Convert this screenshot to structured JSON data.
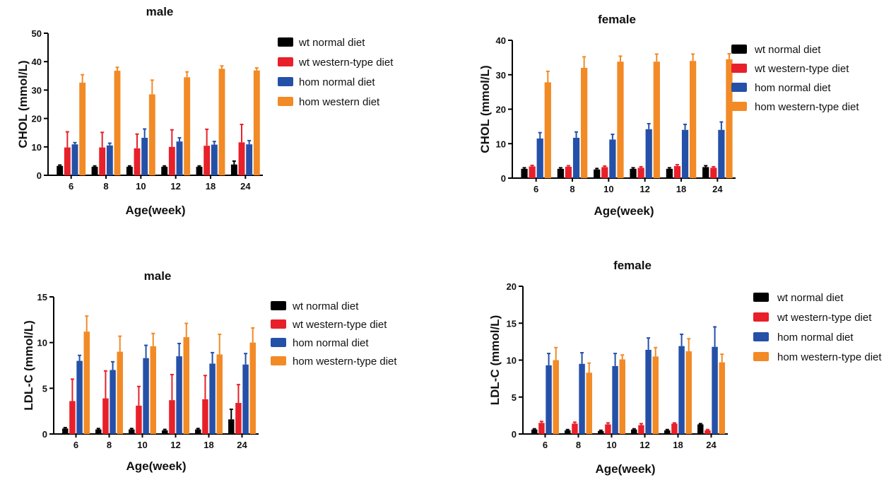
{
  "colors": {
    "wt_normal": "#000000",
    "wt_western": "#e8202a",
    "hom_normal": "#2450a8",
    "hom_western": "#f28a26"
  },
  "chart_data": [
    {
      "type": "bar",
      "title": "male",
      "xlabel": "Age(week)",
      "ylabel": "CHOL (mmol/L)",
      "ylim": [
        0,
        50
      ],
      "yticks": [
        0,
        10,
        20,
        30,
        40,
        50
      ],
      "categories": [
        "6",
        "8",
        "10",
        "12",
        "18",
        "24"
      ],
      "legend_position": "right",
      "series": [
        {
          "name": "wt normal diet",
          "color_key": "wt_normal",
          "values": [
            3.3,
            3.0,
            3.0,
            3.0,
            3.0,
            3.8
          ],
          "errors": [
            0.3,
            0.3,
            0.3,
            0.3,
            0.3,
            1.2
          ]
        },
        {
          "name": "wt western-type diet",
          "color_key": "wt_western",
          "values": [
            9.8,
            9.8,
            9.5,
            10.0,
            10.4,
            11.6
          ],
          "errors": [
            5.5,
            5.3,
            5.0,
            6.0,
            5.8,
            6.3
          ]
        },
        {
          "name": "hom normal diet",
          "color_key": "hom_normal",
          "values": [
            10.9,
            10.5,
            13.2,
            11.9,
            10.8,
            10.9
          ],
          "errors": [
            0.6,
            0.8,
            3.1,
            1.3,
            1.1,
            1.3
          ]
        },
        {
          "name": "hom western diet",
          "color_key": "hom_western",
          "values": [
            32.6,
            36.8,
            28.5,
            34.5,
            37.5,
            36.9
          ],
          "errors": [
            2.8,
            1.2,
            5.0,
            1.9,
            1.0,
            0.9
          ]
        }
      ]
    },
    {
      "type": "bar",
      "title": "female",
      "xlabel": "Age(week)",
      "ylabel": "CHOL (mmol/L)",
      "ylim": [
        0,
        40
      ],
      "yticks": [
        0,
        10,
        20,
        30,
        40
      ],
      "categories": [
        "6",
        "8",
        "10",
        "12",
        "18",
        "24"
      ],
      "legend_position": "right",
      "series": [
        {
          "name": "wt normal diet",
          "color_key": "wt_normal",
          "values": [
            2.7,
            2.7,
            2.5,
            2.7,
            2.7,
            3.2
          ],
          "errors": [
            0.3,
            0.3,
            0.3,
            0.3,
            0.3,
            0.4
          ]
        },
        {
          "name": "wt western-type diet",
          "color_key": "wt_western",
          "values": [
            3.4,
            3.3,
            3.2,
            3.0,
            3.5,
            3.0
          ],
          "errors": [
            0.3,
            0.3,
            0.3,
            0.3,
            0.4,
            0.3
          ]
        },
        {
          "name": "hom normal diet",
          "color_key": "hom_normal",
          "values": [
            11.5,
            11.7,
            11.2,
            14.2,
            14.0,
            14.0
          ],
          "errors": [
            1.7,
            1.7,
            1.5,
            1.6,
            1.6,
            2.3
          ]
        },
        {
          "name": "hom western-type diet",
          "color_key": "hom_western",
          "values": [
            27.8,
            32.0,
            33.8,
            33.8,
            34.0,
            34.5
          ],
          "errors": [
            3.2,
            3.2,
            1.6,
            2.2,
            2.0,
            1.6
          ]
        }
      ]
    },
    {
      "type": "bar",
      "title": "male",
      "xlabel": "Age(week)",
      "ylabel": "LDL-C (mmol/L)",
      "ylim": [
        0,
        15
      ],
      "yticks": [
        0,
        5,
        10,
        15
      ],
      "categories": [
        "6",
        "8",
        "10",
        "12",
        "18",
        "24"
      ],
      "legend_position": "right",
      "series": [
        {
          "name": "wt normal diet",
          "color_key": "wt_normal",
          "values": [
            0.6,
            0.5,
            0.5,
            0.4,
            0.5,
            1.6
          ],
          "errors": [
            0.1,
            0.1,
            0.1,
            0.1,
            0.1,
            1.1
          ]
        },
        {
          "name": "wt western-type diet",
          "color_key": "wt_western",
          "values": [
            3.6,
            3.9,
            3.1,
            3.7,
            3.8,
            3.4
          ],
          "errors": [
            2.4,
            3.0,
            2.1,
            2.8,
            2.6,
            2.0
          ]
        },
        {
          "name": "hom normal diet",
          "color_key": "hom_normal",
          "values": [
            8.0,
            7.0,
            8.3,
            8.5,
            7.7,
            7.6
          ],
          "errors": [
            0.6,
            0.9,
            1.4,
            1.4,
            1.2,
            1.2
          ]
        },
        {
          "name": "hom western-type diet",
          "color_key": "hom_western",
          "values": [
            11.2,
            9.0,
            9.6,
            10.6,
            8.7,
            10.0
          ],
          "errors": [
            1.7,
            1.7,
            1.4,
            1.5,
            2.2,
            1.6
          ]
        }
      ]
    },
    {
      "type": "bar",
      "title": "female",
      "xlabel": "Age(week)",
      "ylabel": "LDL-C (mmol/L)",
      "ylim": [
        0,
        20
      ],
      "yticks": [
        0,
        5,
        10,
        15,
        20
      ],
      "categories": [
        "6",
        "8",
        "10",
        "12",
        "18",
        "24"
      ],
      "legend_position": "right",
      "series": [
        {
          "name": "wt normal diet",
          "color_key": "wt_normal",
          "values": [
            0.6,
            0.5,
            0.4,
            0.6,
            0.5,
            1.3
          ],
          "errors": [
            0.1,
            0.1,
            0.1,
            0.1,
            0.1,
            0.1
          ]
        },
        {
          "name": "wt western-type diet",
          "color_key": "wt_western",
          "values": [
            1.5,
            1.4,
            1.3,
            1.2,
            1.4,
            0.5
          ],
          "errors": [
            0.2,
            0.2,
            0.2,
            0.2,
            0.1,
            0.1
          ]
        },
        {
          "name": "hom normal diet",
          "color_key": "hom_normal",
          "values": [
            9.3,
            9.5,
            9.2,
            11.4,
            11.9,
            11.8
          ],
          "errors": [
            1.6,
            1.5,
            1.7,
            1.6,
            1.6,
            2.7
          ]
        },
        {
          "name": "hom western-type diet",
          "color_key": "hom_western",
          "values": [
            10.0,
            8.3,
            10.1,
            10.5,
            11.2,
            9.7
          ],
          "errors": [
            1.7,
            1.3,
            0.6,
            1.2,
            1.7,
            1.1
          ]
        }
      ]
    }
  ]
}
